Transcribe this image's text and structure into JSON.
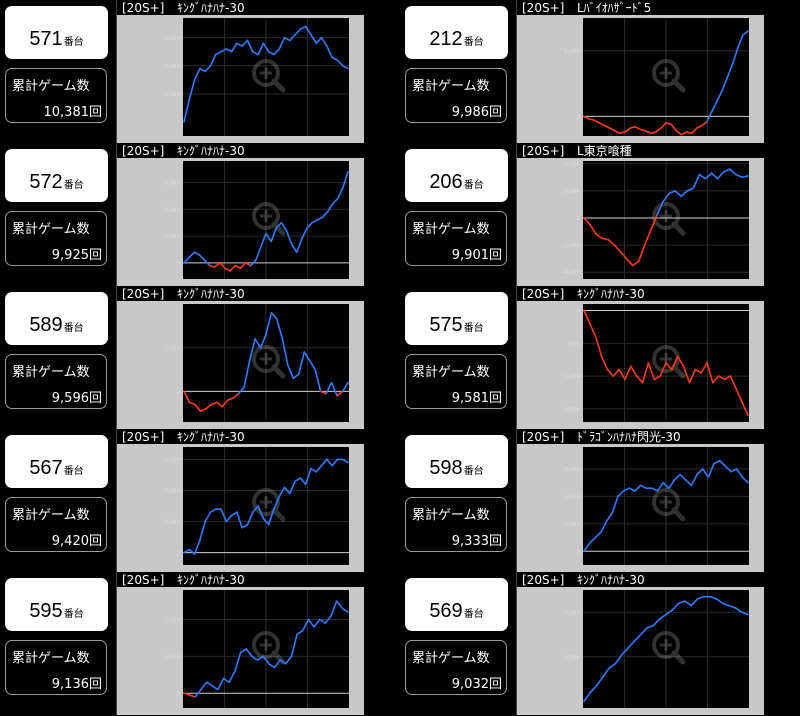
{
  "labels": {
    "suffix": "番台",
    "games_label": "累計ゲーム数",
    "tag": "[20S+]"
  },
  "colors": {
    "plus": "#2f7cff",
    "minus": "#ff3b1a",
    "frame": "#c8c8c8",
    "plot_bg": "#000000"
  },
  "watermark_icon": "zoom-in-icon",
  "machines": [
    {
      "number": "571",
      "games": "10,381回",
      "model": "ｷﾝｸﾞﾊﾅﾊﾅ-30",
      "chart_data": {
        "type": "line",
        "ylim": [
          -500,
          3700
        ],
        "yticks": [
          1000,
          2000,
          3000
        ],
        "ytick_labels": [
          "1,000",
          "2,000",
          "3,000"
        ],
        "values": [
          0,
          800,
          1500,
          1900,
          1800,
          2000,
          2400,
          2500,
          2600,
          2500,
          2800,
          2700,
          2900,
          2500,
          2400,
          2800,
          2500,
          2400,
          2600,
          3000,
          2900,
          3100,
          3300,
          3400,
          3100,
          2800,
          3000,
          2700,
          2300,
          2200,
          2000,
          1900
        ]
      }
    },
    {
      "number": "212",
      "games": "9,986回",
      "model": "Lﾊﾞｲｵﾊｻﾞｰﾄﾞ5",
      "chart_data": {
        "type": "line",
        "ylim": [
          -1500,
          7500
        ],
        "yticks": [
          0,
          5000
        ],
        "ytick_labels": [
          "0",
          "5,000"
        ],
        "values": [
          0,
          -200,
          -300,
          -500,
          -700,
          -900,
          -1100,
          -1300,
          -1200,
          -900,
          -800,
          -1000,
          -1100,
          -1300,
          -1200,
          -900,
          -500,
          -600,
          -1100,
          -1400,
          -1200,
          -1300,
          -900,
          -700,
          -400,
          400,
          1200,
          2000,
          3000,
          4000,
          5200,
          6200,
          6500
        ]
      }
    },
    {
      "number": "572",
      "games": "9,925回",
      "model": "ｷﾝｸﾞﾊﾅﾊﾅ-30",
      "chart_data": {
        "type": "line",
        "ylim": [
          -600,
          3800
        ],
        "yticks": [
          0,
          1000,
          2000,
          3000
        ],
        "ytick_labels": [
          "0",
          "1,000",
          "2,000",
          "3,000"
        ],
        "values": [
          0,
          200,
          400,
          300,
          100,
          -100,
          -150,
          0,
          -200,
          -300,
          -100,
          -200,
          0,
          -100,
          100,
          600,
          1100,
          800,
          1300,
          1500,
          1200,
          700,
          400,
          900,
          1300,
          1500,
          1600,
          1700,
          1900,
          2200,
          2400,
          2800,
          3400
        ]
      }
    },
    {
      "number": "206",
      "games": "9,901回",
      "model": "L東京喰種",
      "chart_data": {
        "type": "line",
        "ylim": [
          -4500,
          4200
        ],
        "yticks": [
          4000,
          2000,
          0,
          -2000,
          -4000
        ],
        "ytick_labels": [
          "4,000",
          "2,000",
          "0",
          "-2,000",
          "-4,000"
        ],
        "values": [
          0,
          -500,
          -1200,
          -1500,
          -1600,
          -2000,
          -2500,
          -3000,
          -3500,
          -3200,
          -2000,
          -900,
          200,
          1200,
          1800,
          2000,
          1600,
          2000,
          2200,
          3200,
          2900,
          3300,
          2900,
          3400,
          3600,
          3200,
          3000,
          3100
        ]
      }
    },
    {
      "number": "589",
      "games": "9,596回",
      "model": "ｷﾝｸﾞﾊﾅﾊﾅ-30",
      "chart_data": {
        "type": "line",
        "ylim": [
          -700,
          2000
        ],
        "yticks": [
          0,
          1000
        ],
        "ytick_labels": [
          "0",
          "1,000"
        ],
        "values": [
          0,
          -250,
          -300,
          -450,
          -400,
          -300,
          -250,
          -350,
          -200,
          -150,
          -50,
          100,
          700,
          1200,
          1000,
          1300,
          1800,
          1650,
          1200,
          600,
          300,
          400,
          900,
          700,
          500,
          0,
          -50,
          200,
          -100,
          0,
          200
        ]
      }
    },
    {
      "number": "575",
      "games": "9,581回",
      "model": "ｷﾝｸﾞﾊﾅﾊﾅ-30",
      "chart_data": {
        "type": "line",
        "ylim": [
          -1700,
          100
        ],
        "yticks": [
          0,
          -500,
          -1000,
          -1500
        ],
        "ytick_labels": [
          "0",
          "-500",
          "-1,000",
          "-1,500"
        ],
        "values": [
          0,
          -200,
          -400,
          -700,
          -900,
          -1000,
          -900,
          -1050,
          -850,
          -1000,
          -1100,
          -800,
          -1050,
          -1000,
          -800,
          -900,
          -700,
          -850,
          -1100,
          -900,
          -950,
          -800,
          -1100,
          -1000,
          -1050,
          -1000,
          -1200,
          -1400,
          -1600
        ]
      }
    },
    {
      "number": "567",
      "games": "9,420回",
      "model": "ｷﾝｸﾞﾊﾅﾊﾅ-30",
      "chart_data": {
        "type": "line",
        "ylim": [
          -400,
          3400
        ],
        "yticks": [
          0,
          1000,
          2000,
          3000
        ],
        "ytick_labels": [
          "0",
          "1,000",
          "2,000",
          "3,000"
        ],
        "values": [
          0,
          100,
          -50,
          400,
          1000,
          1300,
          1400,
          1400,
          1000,
          1200,
          1300,
          800,
          900,
          1300,
          1500,
          1100,
          900,
          1400,
          1800,
          2100,
          1900,
          2300,
          2400,
          2200,
          2700,
          2600,
          2800,
          3000,
          2800,
          3000,
          3000,
          2900
        ]
      }
    },
    {
      "number": "598",
      "games": "9,333回",
      "model": "ﾄﾞﾗｺﾞﾝﾊﾅﾊﾅ閃光-30",
      "chart_data": {
        "type": "line",
        "ylim": [
          -500,
          3800
        ],
        "yticks": [
          0,
          1000,
          2000,
          3000
        ],
        "ytick_labels": [
          "0",
          "1,000",
          "2,000",
          "3,000"
        ],
        "values": [
          0,
          300,
          500,
          700,
          1100,
          1400,
          2000,
          2200,
          2300,
          2200,
          2400,
          2300,
          2300,
          2200,
          2500,
          2300,
          2600,
          2800,
          2600,
          2400,
          2800,
          3000,
          2700,
          3200,
          3300,
          3100,
          2900,
          3000,
          2700,
          2500
        ]
      }
    },
    {
      "number": "595",
      "games": "9,136回",
      "model": "ｷﾝｸﾞﾊﾅﾊﾅ-30",
      "chart_data": {
        "type": "line",
        "ylim": [
          -400,
          2800
        ],
        "yticks": [
          0,
          1000,
          2000
        ],
        "ytick_labels": [
          "0",
          "1,000",
          "2,000"
        ],
        "values": [
          0,
          -50,
          -100,
          100,
          300,
          200,
          100,
          400,
          300,
          600,
          1100,
          1200,
          1000,
          900,
          1000,
          800,
          700,
          900,
          800,
          1000,
          1600,
          1700,
          2000,
          1800,
          2000,
          1900,
          2100,
          2500,
          2300,
          2200
        ]
      }
    },
    {
      "number": "569",
      "games": "9,032回",
      "model": "ｷﾝｸﾞﾊﾅﾊﾅ-30",
      "chart_data": {
        "type": "line",
        "ylim": [
          -300,
          5000
        ],
        "yticks": [
          2000,
          4000
        ],
        "ytick_labels": [
          "2,000",
          "4,000"
        ],
        "values": [
          0,
          400,
          700,
          1100,
          1500,
          1700,
          2100,
          2400,
          2700,
          3000,
          3300,
          3400,
          3700,
          3900,
          4100,
          4400,
          4500,
          4300,
          4600,
          4700,
          4700,
          4600,
          4400,
          4300,
          4200,
          4000,
          3900
        ]
      }
    }
  ]
}
